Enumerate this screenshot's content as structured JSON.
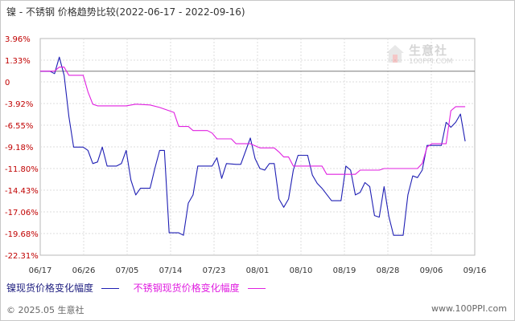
{
  "header": {
    "title": "镍 - 不锈钢 价格趋势比较(2022-06-17 - 2022-09-16)"
  },
  "watermark": {
    "name": "生意社",
    "domain": "100PPI.COM"
  },
  "footer": {
    "copyright": "© 2025.05 生意社",
    "site": "www.100PPI.com"
  },
  "colors": {
    "nickel": "#1f1fb4",
    "stainless": "#e020e0",
    "zero_line": "#7a7a7a",
    "grid": "#dcdcdc"
  },
  "chart_data": {
    "type": "line",
    "title": "镍 - 不锈钢 价格趋势比较(2022-06-17 - 2022-09-16)",
    "x_start": "2022-06-17",
    "x_end": "2022-09-16",
    "x_tick_labels": [
      "06/17",
      "06/26",
      "07/05",
      "07/14",
      "07/23",
      "08/01",
      "08/10",
      "08/19",
      "08/28",
      "09/06",
      "09/16"
    ],
    "y_tick_labels": [
      "3.96%",
      "1.33%",
      "0",
      "-3.92%",
      "-6.55%",
      "-9.18%",
      "-11.80%",
      "-14.43%",
      "-17.06%",
      "-19.68%",
      "-22.31%"
    ],
    "ylim": [
      -22.31,
      3.96
    ],
    "unit": "%",
    "grid": true,
    "legend_position": "bottom",
    "series": [
      {
        "name": "镍现货价格变化幅度",
        "color": "#1f1fb4",
        "points": [
          [
            "2022-06-17",
            0.0
          ],
          [
            "2022-06-19",
            0.0
          ],
          [
            "2022-06-20",
            -0.3
          ],
          [
            "2022-06-21",
            1.7
          ],
          [
            "2022-06-22",
            -0.5
          ],
          [
            "2022-06-23",
            -5.5
          ],
          [
            "2022-06-24",
            -9.2
          ],
          [
            "2022-06-26",
            -9.2
          ],
          [
            "2022-06-27",
            -9.6
          ],
          [
            "2022-06-28",
            -11.2
          ],
          [
            "2022-06-29",
            -11.0
          ],
          [
            "2022-06-30",
            -9.2
          ],
          [
            "2022-07-01",
            -11.5
          ],
          [
            "2022-07-03",
            -11.5
          ],
          [
            "2022-07-04",
            -11.2
          ],
          [
            "2022-07-05",
            -9.6
          ],
          [
            "2022-07-06",
            -13.2
          ],
          [
            "2022-07-07",
            -15.0
          ],
          [
            "2022-07-08",
            -14.2
          ],
          [
            "2022-07-10",
            -14.2
          ],
          [
            "2022-07-11",
            -11.8
          ],
          [
            "2022-07-12",
            -9.6
          ],
          [
            "2022-07-13",
            -9.6
          ],
          [
            "2022-07-14",
            -19.6
          ],
          [
            "2022-07-16",
            -19.6
          ],
          [
            "2022-07-17",
            -19.9
          ],
          [
            "2022-07-18",
            -16.0
          ],
          [
            "2022-07-19",
            -15.0
          ],
          [
            "2022-07-20",
            -11.5
          ],
          [
            "2022-07-22",
            -11.5
          ],
          [
            "2022-07-23",
            -11.5
          ],
          [
            "2022-07-24",
            -10.5
          ],
          [
            "2022-07-25",
            -13.0
          ],
          [
            "2022-07-26",
            -11.2
          ],
          [
            "2022-07-28",
            -11.3
          ],
          [
            "2022-07-29",
            -11.3
          ],
          [
            "2022-07-31",
            -8.1
          ],
          [
            "2022-08-01",
            -10.6
          ],
          [
            "2022-08-02",
            -11.8
          ],
          [
            "2022-08-03",
            -12.0
          ],
          [
            "2022-08-04",
            -11.2
          ],
          [
            "2022-08-05",
            -11.2
          ],
          [
            "2022-08-06",
            -15.5
          ],
          [
            "2022-08-07",
            -16.5
          ],
          [
            "2022-08-08",
            -15.5
          ],
          [
            "2022-08-09",
            -12.0
          ],
          [
            "2022-08-10",
            -10.2
          ],
          [
            "2022-08-12",
            -10.2
          ],
          [
            "2022-08-13",
            -12.6
          ],
          [
            "2022-08-14",
            -13.6
          ],
          [
            "2022-08-15",
            -14.2
          ],
          [
            "2022-08-17",
            -15.7
          ],
          [
            "2022-08-19",
            -15.7
          ],
          [
            "2022-08-20",
            -11.5
          ],
          [
            "2022-08-21",
            -12.0
          ],
          [
            "2022-08-22",
            -15.0
          ],
          [
            "2022-08-23",
            -14.7
          ],
          [
            "2022-08-24",
            -13.5
          ],
          [
            "2022-08-25",
            -14.0
          ],
          [
            "2022-08-26",
            -17.5
          ],
          [
            "2022-08-27",
            -17.7
          ],
          [
            "2022-08-28",
            -14.0
          ],
          [
            "2022-08-29",
            -17.6
          ],
          [
            "2022-08-30",
            -19.9
          ],
          [
            "2022-09-01",
            -19.9
          ],
          [
            "2022-09-02",
            -15.0
          ],
          [
            "2022-09-03",
            -12.7
          ],
          [
            "2022-09-04",
            -12.9
          ],
          [
            "2022-09-05",
            -12.0
          ],
          [
            "2022-09-06",
            -9.0
          ],
          [
            "2022-09-09",
            -9.0
          ],
          [
            "2022-09-10",
            -6.2
          ],
          [
            "2022-09-11",
            -6.8
          ],
          [
            "2022-09-12",
            -6.2
          ],
          [
            "2022-09-13",
            -5.2
          ],
          [
            "2022-09-14",
            -8.5
          ]
        ]
      },
      {
        "name": "不锈钢现货价格变化幅度",
        "color": "#e020e0",
        "points": [
          [
            "2022-06-17",
            0.0
          ],
          [
            "2022-06-19",
            0.0
          ],
          [
            "2022-06-20",
            0.0
          ],
          [
            "2022-06-21",
            0.5
          ],
          [
            "2022-06-22",
            0.5
          ],
          [
            "2022-06-23",
            -0.5
          ],
          [
            "2022-06-24",
            -0.5
          ],
          [
            "2022-06-26",
            -0.5
          ],
          [
            "2022-06-27",
            -2.5
          ],
          [
            "2022-06-28",
            -4.0
          ],
          [
            "2022-06-29",
            -4.2
          ],
          [
            "2022-07-03",
            -4.2
          ],
          [
            "2022-07-05",
            -4.2
          ],
          [
            "2022-07-07",
            -4.0
          ],
          [
            "2022-07-10",
            -4.1
          ],
          [
            "2022-07-12",
            -4.4
          ],
          [
            "2022-07-14",
            -4.8
          ],
          [
            "2022-07-15",
            -5.0
          ],
          [
            "2022-07-16",
            -6.7
          ],
          [
            "2022-07-18",
            -6.7
          ],
          [
            "2022-07-19",
            -7.2
          ],
          [
            "2022-07-22",
            -7.2
          ],
          [
            "2022-07-23",
            -7.5
          ],
          [
            "2022-07-24",
            -8.2
          ],
          [
            "2022-07-27",
            -8.2
          ],
          [
            "2022-07-28",
            -8.8
          ],
          [
            "2022-07-31",
            -8.8
          ],
          [
            "2022-08-02",
            -9.3
          ],
          [
            "2022-08-05",
            -9.3
          ],
          [
            "2022-08-06",
            -9.8
          ],
          [
            "2022-08-07",
            -10.4
          ],
          [
            "2022-08-08",
            -10.4
          ],
          [
            "2022-08-09",
            -11.5
          ],
          [
            "2022-08-15",
            -11.5
          ],
          [
            "2022-08-16",
            -12.5
          ],
          [
            "2022-08-22",
            -12.5
          ],
          [
            "2022-08-23",
            -12.0
          ],
          [
            "2022-08-27",
            -12.0
          ],
          [
            "2022-08-28",
            -11.8
          ],
          [
            "2022-09-04",
            -11.8
          ],
          [
            "2022-09-05",
            -11.2
          ],
          [
            "2022-09-06",
            -9.2
          ],
          [
            "2022-09-07",
            -8.8
          ],
          [
            "2022-09-10",
            -8.8
          ],
          [
            "2022-09-11",
            -4.8
          ],
          [
            "2022-09-12",
            -4.3
          ],
          [
            "2022-09-14",
            -4.3
          ]
        ]
      }
    ]
  }
}
